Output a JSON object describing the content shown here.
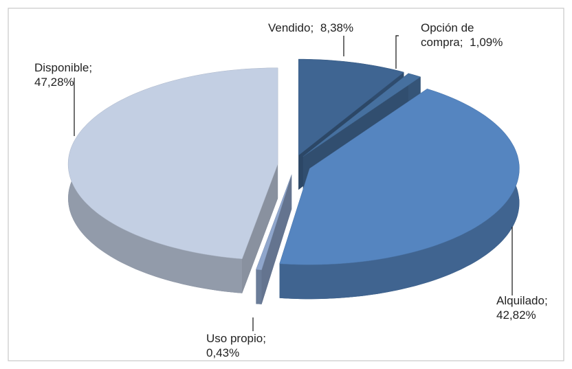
{
  "chart_data": {
    "type": "pie",
    "categories": [
      "Vendido",
      "Opción de compra",
      "Alquilado",
      "Uso propio",
      "Disponible"
    ],
    "values": [
      8.38,
      1.09,
      42.82,
      0.43,
      47.28
    ],
    "value_labels": [
      "8,38%",
      "1,09%",
      "42,82%",
      "0,43%",
      "47,28%"
    ],
    "colors": [
      "#3f6592",
      "#46709f",
      "#5585c0",
      "#8fa6cc",
      "#c3cfe3"
    ],
    "start_angle": 0,
    "direction": "clockwise",
    "exploded": true,
    "three_d": true
  }
}
